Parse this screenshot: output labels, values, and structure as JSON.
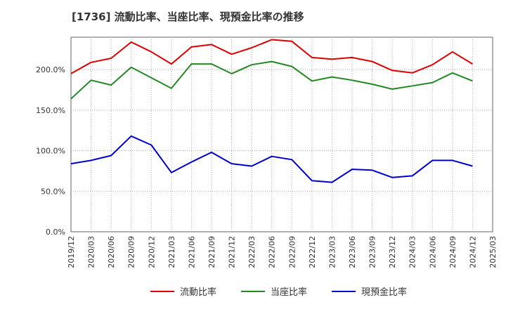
{
  "chart_data": {
    "type": "line",
    "title": "[1736]  流動比率、当座比率、現預金比率の推移",
    "xlabel": "",
    "ylabel": "",
    "ylim": [
      0,
      240
    ],
    "yticks": [
      "0.0%",
      "50.0%",
      "100.0%",
      "150.0%",
      "200.0%"
    ],
    "ytick_values": [
      0,
      50,
      100,
      150,
      200
    ],
    "x_tick_labels": [
      "2019/12",
      "2020/03",
      "2020/06",
      "2020/09",
      "2020/12",
      "2021/03",
      "2021/06",
      "2021/09",
      "2021/12",
      "2022/03",
      "2022/06",
      "2022/09",
      "2022/12",
      "2023/03",
      "2023/06",
      "2023/09",
      "2023/12",
      "2024/03",
      "2024/06",
      "2024/09",
      "2024/12",
      "2025/03"
    ],
    "categories": [
      "2019/12",
      "2020/03",
      "2020/06",
      "2020/09",
      "2020/12",
      "2021/03",
      "2021/06",
      "2021/09",
      "2021/12",
      "2022/03",
      "2022/06",
      "2022/09",
      "2022/12",
      "2023/03",
      "2023/06",
      "2023/09",
      "2023/12",
      "2024/03",
      "2024/06",
      "2024/09",
      "2024/12"
    ],
    "series": [
      {
        "name": "流動比率",
        "color": "#dd0000",
        "values": [
          195,
          209,
          214,
          234,
          222,
          207,
          228,
          231,
          219,
          227,
          237,
          235,
          215,
          213,
          215,
          210,
          199,
          196,
          206,
          222,
          207
        ]
      },
      {
        "name": "当座比率",
        "color": "#228822",
        "values": [
          164,
          187,
          181,
          203,
          190,
          177,
          207,
          207,
          195,
          206,
          210,
          204,
          186,
          191,
          187,
          182,
          176,
          180,
          184,
          196,
          186
        ]
      },
      {
        "name": "現預金比率",
        "color": "#0000cc",
        "values": [
          84,
          88,
          94,
          118,
          107,
          73,
          86,
          98,
          84,
          81,
          93,
          89,
          63,
          61,
          77,
          76,
          67,
          69,
          88,
          88,
          81
        ]
      }
    ],
    "grid": true,
    "legend": "bottom"
  }
}
